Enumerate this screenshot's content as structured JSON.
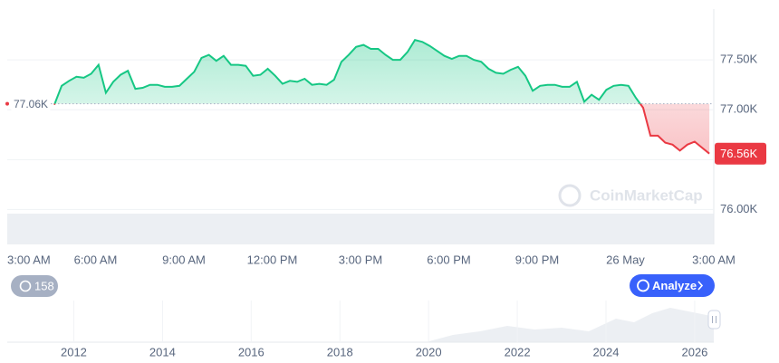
{
  "chart_data": {
    "type": "line",
    "x": [
      1.6,
      1.85,
      2.1,
      2.35,
      2.6,
      2.85,
      3.1,
      3.35,
      3.6,
      3.85,
      4.1,
      4.35,
      4.6,
      4.85,
      5.1,
      5.35,
      5.6,
      5.85,
      6.1,
      6.35,
      6.6,
      6.85,
      7.1,
      7.35,
      7.6,
      7.85,
      8.1,
      8.35,
      8.6,
      8.85,
      9.1,
      9.35,
      9.6,
      9.85,
      10.1,
      10.35,
      10.6,
      10.85,
      11.1,
      11.35,
      11.6,
      11.85,
      12.1,
      12.35,
      12.6,
      12.85,
      13.1,
      13.35,
      13.6,
      13.85,
      14.1,
      14.35,
      14.6,
      14.85,
      15.1,
      15.35,
      15.6,
      15.85,
      16.1,
      16.35,
      16.6,
      16.85,
      17.1,
      17.35,
      17.6,
      17.85,
      18.1,
      18.35,
      18.6,
      18.85,
      19.1,
      19.35,
      19.6,
      19.85,
      20.1,
      20.35,
      20.6,
      20.85,
      21.1,
      21.35,
      21.6,
      21.85,
      22.1,
      22.35,
      22.6,
      22.85,
      23.1,
      23.35,
      23.6,
      23.85
    ],
    "values": [
      77050,
      77240,
      77290,
      77330,
      77320,
      77360,
      77450,
      77170,
      77280,
      77350,
      77390,
      77210,
      77220,
      77250,
      77250,
      77230,
      77230,
      77240,
      77310,
      77380,
      77520,
      77550,
      77490,
      77540,
      77450,
      77450,
      77440,
      77340,
      77350,
      77410,
      77340,
      77260,
      77290,
      77280,
      77310,
      77250,
      77260,
      77250,
      77300,
      77480,
      77550,
      77630,
      77650,
      77610,
      77610,
      77550,
      77500,
      77500,
      77580,
      77700,
      77680,
      77640,
      77590,
      77540,
      77510,
      77540,
      77540,
      77500,
      77480,
      77410,
      77370,
      77360,
      77400,
      77430,
      77340,
      77190,
      77240,
      77250,
      77250,
      77230,
      77230,
      77280,
      77080,
      77150,
      77100,
      77200,
      77240,
      77250,
      77240,
      77120,
      77020,
      76740,
      76740,
      76670,
      76650,
      76590,
      76650,
      76680,
      76620,
      76560
    ],
    "color_up": "#16c784",
    "color_down": "#ea3943",
    "baseline": {
      "value": 77060,
      "label": "77.06K"
    },
    "current_price": {
      "value": 76560,
      "label": "76.56K"
    },
    "xlim": [
      0,
      24
    ],
    "xticks": [
      {
        "value": 0,
        "label": "3:00 AM"
      },
      {
        "value": 3,
        "label": "6:00 AM"
      },
      {
        "value": 6,
        "label": "9:00 AM"
      },
      {
        "value": 9,
        "label": "12:00 PM"
      },
      {
        "value": 12,
        "label": "3:00 PM"
      },
      {
        "value": 15,
        "label": "6:00 PM"
      },
      {
        "value": 18,
        "label": "9:00 PM"
      },
      {
        "value": 21,
        "label": "26 May"
      },
      {
        "value": 24,
        "label": "3:00 AM"
      }
    ],
    "ylim": [
      75650,
      78000
    ],
    "yticks": [
      {
        "value": 76000,
        "label": "76.00K"
      },
      {
        "value": 76500,
        "label": ""
      },
      {
        "value": 77000,
        "label": "77.00K"
      },
      {
        "value": 77500,
        "label": "77.50K"
      }
    ],
    "grid": true,
    "watermark": "CoinMarketCap"
  },
  "navigator": {
    "xlim": [
      2010.5,
      2026.43
    ],
    "xticks": [
      2012,
      2014,
      2016,
      2018,
      2020,
      2022,
      2024,
      2026
    ]
  },
  "controls": {
    "history_count": 158,
    "analyze": "Analyze"
  }
}
